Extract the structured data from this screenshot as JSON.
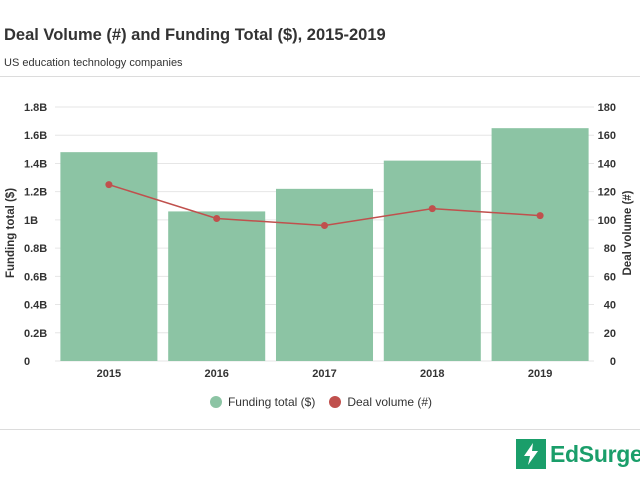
{
  "header": {
    "title": "Deal Volume (#) and Funding Total ($), 2015-2019",
    "subtitle": "US education technology companies"
  },
  "colors": {
    "bar": "#8cc4a4",
    "line": "#c0504d",
    "brand": "#1a9e6a",
    "text": "#333333",
    "grid": "#e6e6e6"
  },
  "legend": {
    "items": [
      {
        "label": "Funding total ($)",
        "color": "#8cc4a4"
      },
      {
        "label": "Deal volume (#)",
        "color": "#c0504d"
      }
    ]
  },
  "brand": {
    "name": "EdSurge",
    "icon": "lightning-bolt-icon"
  },
  "chart_data": {
    "type": "bar+line",
    "title": "Deal Volume (#) and Funding Total ($), 2015-2019",
    "subtitle": "US education technology companies",
    "categories": [
      "2015",
      "2016",
      "2017",
      "2018",
      "2019"
    ],
    "series": [
      {
        "name": "Funding total ($)",
        "type": "bar",
        "axis": "left",
        "values": [
          1.48,
          1.06,
          1.22,
          1.42,
          1.65
        ]
      },
      {
        "name": "Deal volume (#)",
        "type": "line",
        "axis": "right",
        "values": [
          125,
          101,
          96,
          108,
          103
        ]
      }
    ],
    "y_left": {
      "label": "Funding total ($)",
      "ylim": [
        0,
        1.8
      ],
      "ticks": [
        0,
        0.2,
        0.4,
        0.6,
        0.8,
        1,
        1.2,
        1.4,
        1.6,
        1.8
      ],
      "tick_labels": [
        "0",
        "0.2B",
        "0.4B",
        "0.6B",
        "0.8B",
        "1B",
        "1.2B",
        "1.4B",
        "1.6B",
        "1.8B"
      ]
    },
    "y_right": {
      "label": "Deal volume (#)",
      "ylim": [
        0,
        180
      ],
      "ticks": [
        0,
        20,
        40,
        60,
        80,
        100,
        120,
        140,
        160,
        180
      ],
      "tick_labels": [
        "0",
        "20",
        "40",
        "60",
        "80",
        "100",
        "120",
        "140",
        "160",
        "180"
      ]
    },
    "grid": true,
    "legend_position": "bottom-center"
  }
}
